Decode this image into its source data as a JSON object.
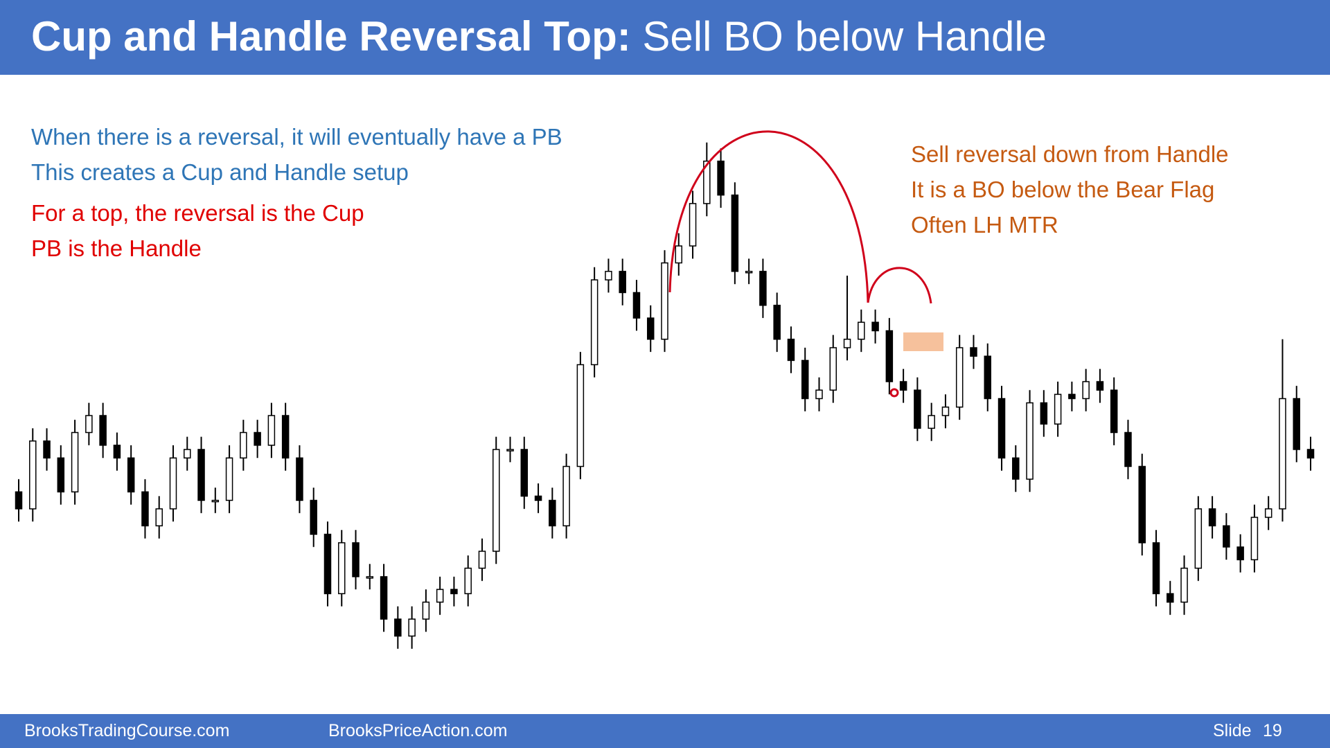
{
  "header": {
    "title_bold": "Cup and Handle Reversal Top:",
    "title_rest": "Sell BO below Handle"
  },
  "notes": {
    "blue": [
      "When there is a reversal, it will eventually have a PB",
      "This creates a Cup and Handle setup"
    ],
    "red": [
      "For a top, the reversal is the Cup",
      "PB is the Handle"
    ],
    "orange": [
      "Sell reversal down from Handle",
      "It is a BO below the Bear Flag",
      "Often LH MTR"
    ]
  },
  "footer": {
    "left": "BrooksTradingCourse.com",
    "middle": "BrooksPriceAction.com",
    "slide_label": "Slide",
    "slide_number": "19"
  },
  "chart_data": {
    "type": "candlestick",
    "ylim": [
      118,
      1000
    ],
    "open": [
      420,
      400,
      480,
      460,
      420,
      490,
      510,
      475,
      460,
      420,
      380,
      400,
      460,
      470,
      410,
      410,
      460,
      490,
      475,
      510,
      460,
      410,
      370,
      300,
      360,
      320,
      320,
      270,
      250,
      270,
      290,
      305,
      300,
      330,
      350,
      470,
      470,
      415,
      410,
      380,
      450,
      570,
      670,
      680,
      655,
      625,
      600,
      690,
      710,
      760,
      810,
      770,
      680,
      680,
      640,
      600,
      575,
      530,
      540,
      590,
      600,
      620,
      610,
      550,
      540,
      495,
      510,
      520,
      590,
      580,
      530,
      460,
      435,
      525,
      500,
      535,
      530,
      550,
      540,
      490,
      450,
      360,
      300,
      290,
      330,
      400,
      380,
      355,
      340,
      390,
      400,
      530,
      470
    ],
    "high": [
      435,
      495,
      495,
      475,
      505,
      525,
      525,
      490,
      475,
      435,
      415,
      475,
      485,
      485,
      425,
      475,
      505,
      505,
      525,
      525,
      475,
      425,
      385,
      375,
      375,
      335,
      335,
      285,
      285,
      305,
      320,
      320,
      345,
      365,
      485,
      485,
      485,
      430,
      425,
      465,
      585,
      685,
      695,
      695,
      670,
      640,
      705,
      725,
      775,
      832,
      825,
      785,
      695,
      695,
      655,
      615,
      590,
      555,
      605,
      675,
      635,
      635,
      625,
      565,
      555,
      525,
      535,
      605,
      605,
      595,
      545,
      475,
      540,
      540,
      550,
      550,
      565,
      565,
      555,
      505,
      465,
      375,
      315,
      345,
      415,
      415,
      395,
      370,
      405,
      415,
      600,
      545,
      485
    ],
    "low": [
      385,
      385,
      445,
      405,
      405,
      475,
      460,
      445,
      405,
      365,
      365,
      385,
      445,
      395,
      395,
      395,
      445,
      460,
      460,
      445,
      395,
      355,
      285,
      285,
      305,
      305,
      255,
      235,
      235,
      255,
      275,
      285,
      285,
      315,
      335,
      455,
      400,
      395,
      365,
      365,
      435,
      555,
      655,
      640,
      610,
      585,
      585,
      675,
      695,
      745,
      755,
      665,
      665,
      625,
      585,
      560,
      515,
      515,
      525,
      575,
      585,
      595,
      535,
      525,
      480,
      480,
      495,
      505,
      565,
      515,
      445,
      420,
      420,
      485,
      485,
      515,
      515,
      525,
      475,
      435,
      345,
      285,
      275,
      275,
      315,
      365,
      340,
      325,
      325,
      375,
      385,
      455,
      445
    ],
    "close": [
      400,
      480,
      460,
      420,
      490,
      510,
      475,
      460,
      420,
      380,
      400,
      460,
      470,
      410,
      410,
      460,
      490,
      475,
      510,
      460,
      410,
      370,
      300,
      360,
      320,
      320,
      270,
      250,
      270,
      290,
      305,
      300,
      330,
      350,
      470,
      470,
      415,
      410,
      380,
      450,
      570,
      670,
      680,
      655,
      625,
      600,
      690,
      710,
      760,
      810,
      770,
      680,
      680,
      640,
      600,
      575,
      530,
      540,
      590,
      600,
      620,
      610,
      550,
      540,
      495,
      510,
      520,
      590,
      580,
      530,
      460,
      435,
      525,
      500,
      535,
      530,
      550,
      540,
      490,
      450,
      360,
      300,
      290,
      330,
      400,
      380,
      355,
      340,
      390,
      400,
      530,
      470,
      460
    ]
  }
}
